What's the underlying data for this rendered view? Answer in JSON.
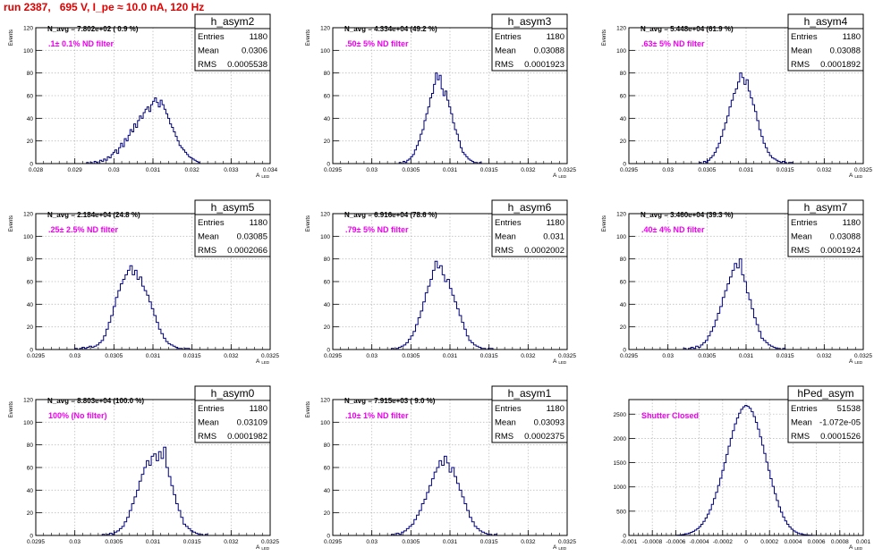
{
  "run_title": "run 2387,   695 V, I_pe ≈ 10.0 nA, 120 Hz",
  "colors": {
    "title": "#e00000",
    "hist": "#00007a",
    "label": "#ee00ee",
    "grid": "#bfbfbf",
    "frame": "#000000"
  },
  "stats_labels": {
    "entries": "Entries",
    "mean": "Mean",
    "rms": "RMS"
  },
  "chart_data": [
    {
      "type": "bar",
      "name": "h_asym2",
      "navg": "N_avg = 7.802e+02 ( 0.9 %)",
      "filter": ".1± 0.1% ND filter",
      "entries": "1180",
      "mean": "0.0306",
      "rms": "0.0005538",
      "xlabel": "A_{LED}",
      "ylabel": "Events",
      "xlim": [
        0.028,
        0.034
      ],
      "ylim": [
        0,
        120
      ],
      "xticks": [
        "0.028",
        "0.029",
        "0.03",
        "0.031",
        "0.032",
        "0.033",
        "0.034"
      ],
      "yticks": [
        "0",
        "20",
        "40",
        "60",
        "80",
        "100",
        "120"
      ],
      "bin_edges": [
        0.0293,
        0.0322
      ],
      "values": [
        1,
        0,
        1,
        0,
        2,
        1,
        0,
        3,
        2,
        4,
        3,
        6,
        5,
        8,
        10,
        12,
        9,
        14,
        18,
        15,
        22,
        20,
        25,
        30,
        28,
        35,
        32,
        38,
        42,
        40,
        45,
        48,
        50,
        46,
        52,
        55,
        58,
        54,
        50,
        56,
        52,
        48,
        44,
        40,
        35,
        32,
        28,
        24,
        20,
        16,
        14,
        12,
        10,
        8,
        6,
        5,
        4,
        3,
        2,
        1
      ]
    },
    {
      "type": "bar",
      "name": "h_asym3",
      "navg": "N_avg = 4.334e+04 (49.2 %)",
      "filter": ".50± 5% ND filter",
      "entries": "1180",
      "mean": "0.03088",
      "rms": "0.0001923",
      "xlabel": "A_{LED}",
      "ylabel": "Events",
      "xlim": [
        0.0295,
        0.0325
      ],
      "ylim": [
        0,
        120
      ],
      "xticks": [
        "0.0295",
        "0.03",
        "0.0305",
        "0.031",
        "0.0315",
        "0.032",
        "0.0325"
      ],
      "yticks": [
        "0",
        "20",
        "40",
        "60",
        "80",
        "100",
        "120"
      ],
      "bin_edges": [
        0.03035,
        0.0314
      ],
      "values": [
        1,
        0,
        2,
        1,
        3,
        4,
        6,
        8,
        12,
        16,
        20,
        26,
        30,
        38,
        44,
        50,
        58,
        62,
        70,
        80,
        74,
        78,
        66,
        60,
        64,
        56,
        50,
        44,
        36,
        30,
        26,
        20,
        14,
        10,
        8,
        6,
        4,
        3,
        2,
        1,
        1,
        0,
        1
      ]
    },
    {
      "type": "bar",
      "name": "h_asym4",
      "navg": "N_avg = 5.448e+04 (61.9 %)",
      "filter": ".63± 5% ND filter",
      "entries": "1180",
      "mean": "0.03088",
      "rms": "0.0001892",
      "xlabel": "A_{LED}",
      "ylabel": "Events",
      "xlim": [
        0.0295,
        0.0325
      ],
      "ylim": [
        0,
        120
      ],
      "xticks": [
        "0.0295",
        "0.03",
        "0.0305",
        "0.031",
        "0.0315",
        "0.032",
        "0.0325"
      ],
      "yticks": [
        "0",
        "20",
        "40",
        "60",
        "80",
        "100",
        "120"
      ],
      "bin_edges": [
        0.0304,
        0.0316
      ],
      "values": [
        1,
        0,
        2,
        1,
        3,
        5,
        7,
        10,
        14,
        18,
        24,
        30,
        36,
        42,
        50,
        56,
        62,
        66,
        72,
        80,
        76,
        70,
        74,
        64,
        58,
        52,
        46,
        38,
        30,
        24,
        18,
        14,
        10,
        7,
        5,
        4,
        3,
        2,
        1,
        2,
        1,
        0,
        1,
        1
      ]
    },
    {
      "type": "bar",
      "name": "h_asym5",
      "navg": "N_avg = 2.184e+04 (24.8 %)",
      "filter": ".25± 2.5% ND filter",
      "entries": "1180",
      "mean": "0.03085",
      "rms": "0.0002066",
      "xlabel": "A_{LED}",
      "ylabel": "Events",
      "xlim": [
        0.0295,
        0.0325
      ],
      "ylim": [
        0,
        120
      ],
      "xticks": [
        "0.0295",
        "0.03",
        "0.0305",
        "0.031",
        "0.0315",
        "0.032",
        "0.0325"
      ],
      "yticks": [
        "0",
        "20",
        "40",
        "60",
        "80",
        "100",
        "120"
      ],
      "bin_edges": [
        0.03,
        0.0315
      ],
      "values": [
        1,
        0,
        1,
        2,
        1,
        2,
        3,
        2,
        3,
        4,
        6,
        8,
        12,
        18,
        24,
        30,
        38,
        46,
        52,
        58,
        62,
        66,
        70,
        74,
        66,
        70,
        62,
        64,
        56,
        52,
        48,
        42,
        36,
        30,
        24,
        18,
        14,
        10,
        7,
        5,
        4,
        3,
        2,
        1,
        1,
        0,
        1,
        1,
        0
      ]
    },
    {
      "type": "bar",
      "name": "h_asym6",
      "navg": "N_avg = 6.916e+04 (78.6 %)",
      "filter": ".79± 5% ND filter",
      "entries": "1180",
      "mean": "0.031",
      "rms": "0.0002002",
      "xlabel": "A_{LED}",
      "ylabel": "Events",
      "xlim": [
        0.0295,
        0.0325
      ],
      "ylim": [
        0,
        120
      ],
      "xticks": [
        "0.0295",
        "0.03",
        "0.0305",
        "0.031",
        "0.0315",
        "0.032",
        "0.0325"
      ],
      "yticks": [
        "0",
        "20",
        "40",
        "60",
        "80",
        "100",
        "120"
      ],
      "bin_edges": [
        0.03025,
        0.03155
      ],
      "values": [
        1,
        0,
        1,
        2,
        3,
        4,
        6,
        9,
        12,
        16,
        22,
        28,
        34,
        42,
        50,
        56,
        62,
        70,
        78,
        72,
        74,
        66,
        60,
        62,
        54,
        48,
        42,
        36,
        30,
        24,
        18,
        12,
        8,
        6,
        4,
        3,
        2,
        1,
        1,
        0,
        1,
        1
      ]
    },
    {
      "type": "bar",
      "name": "h_asym7",
      "navg": "N_avg = 3.460e+04 (39.3 %)",
      "filter": ".40± 4% ND filter",
      "entries": "1180",
      "mean": "0.03088",
      "rms": "0.0001924",
      "xlabel": "A_{LED}",
      "ylabel": "Events",
      "xlim": [
        0.0295,
        0.0325
      ],
      "ylim": [
        0,
        120
      ],
      "xticks": [
        "0.0295",
        "0.03",
        "0.0305",
        "0.031",
        "0.0315",
        "0.032",
        "0.0325"
      ],
      "yticks": [
        "0",
        "20",
        "40",
        "60",
        "80",
        "100",
        "120"
      ],
      "bin_edges": [
        0.0302,
        0.0315
      ],
      "values": [
        1,
        0,
        1,
        2,
        1,
        3,
        2,
        4,
        6,
        8,
        12,
        16,
        20,
        26,
        32,
        38,
        46,
        52,
        58,
        64,
        70,
        76,
        72,
        80,
        66,
        60,
        50,
        44,
        36,
        28,
        22,
        16,
        10,
        8,
        6,
        4,
        3,
        2,
        1,
        1,
        0,
        1
      ]
    },
    {
      "type": "bar",
      "name": "h_asym0",
      "navg": "N_avg = 8.803e+04 (100.0 %)",
      "filter": "100% (No filter)",
      "entries": "1180",
      "mean": "0.03109",
      "rms": "0.0001982",
      "xlabel": "A_{LED}",
      "ylabel": "Events",
      "xlim": [
        0.0295,
        0.0325
      ],
      "ylim": [
        0,
        120
      ],
      "xticks": [
        "0.0295",
        "0.03",
        "0.0305",
        "0.031",
        "0.0315",
        "0.032",
        "0.0325"
      ],
      "yticks": [
        "0",
        "20",
        "40",
        "60",
        "80",
        "100",
        "120"
      ],
      "bin_edges": [
        0.03035,
        0.0317
      ],
      "values": [
        1,
        0,
        1,
        2,
        1,
        3,
        4,
        6,
        8,
        12,
        16,
        22,
        28,
        34,
        40,
        48,
        54,
        60,
        66,
        62,
        70,
        72,
        66,
        74,
        68,
        78,
        60,
        52,
        44,
        36,
        28,
        22,
        16,
        10,
        8,
        6,
        4,
        3,
        2,
        1,
        1,
        0,
        1
      ]
    },
    {
      "type": "bar",
      "name": "h_asym1",
      "navg": "N_avg = 7.915e+03 ( 9.0 %)",
      "filter": ".10± 1% ND filter",
      "entries": "1180",
      "mean": "0.03093",
      "rms": "0.0002375",
      "xlabel": "A_{LED}",
      "ylabel": "Events",
      "xlim": [
        0.0295,
        0.0325
      ],
      "ylim": [
        0,
        120
      ],
      "xticks": [
        "0.0295",
        "0.03",
        "0.0305",
        "0.031",
        "0.0315",
        "0.032",
        "0.0325"
      ],
      "yticks": [
        "0",
        "20",
        "40",
        "60",
        "80",
        "100",
        "120"
      ],
      "bin_edges": [
        0.03025,
        0.0316
      ],
      "values": [
        1,
        0,
        2,
        1,
        3,
        4,
        6,
        8,
        10,
        14,
        18,
        22,
        28,
        32,
        38,
        44,
        50,
        56,
        60,
        66,
        62,
        70,
        64,
        56,
        60,
        52,
        46,
        40,
        34,
        28,
        22,
        16,
        12,
        8,
        6,
        4,
        3,
        2,
        1,
        1,
        0,
        1
      ]
    },
    {
      "type": "bar",
      "name": "hPed_asym",
      "navg": "",
      "filter": "Shutter Closed",
      "entries": "51538",
      "mean": "-1.072e-05",
      "rms": "0.0001526",
      "xlabel": "A_{LED}",
      "ylabel": "",
      "xlim": [
        -0.001,
        0.001
      ],
      "ylim": [
        0,
        2800
      ],
      "xticks": [
        "-0.001",
        "-0.0008",
        "-0.0006",
        "-0.0004",
        "-0.0002",
        "0",
        "0.0002",
        "0.0004",
        "0.0006",
        "0.0008",
        "0.001"
      ],
      "yticks": [
        "0",
        "500",
        "1000",
        "1500",
        "2000",
        "2500"
      ],
      "bin_edges": [
        -0.0006,
        0.00058
      ],
      "values": [
        5,
        8,
        12,
        18,
        25,
        35,
        48,
        65,
        85,
        110,
        140,
        180,
        230,
        290,
        360,
        440,
        530,
        640,
        760,
        890,
        1030,
        1180,
        1340,
        1500,
        1670,
        1840,
        2000,
        2160,
        2300,
        2420,
        2520,
        2600,
        2650,
        2680,
        2660,
        2620,
        2550,
        2450,
        2330,
        2190,
        2030,
        1860,
        1690,
        1510,
        1340,
        1170,
        1010,
        860,
        720,
        590,
        480,
        380,
        300,
        230,
        175,
        130,
        95,
        68,
        48,
        34,
        24,
        16,
        11,
        7,
        5,
        3
      ]
    }
  ]
}
